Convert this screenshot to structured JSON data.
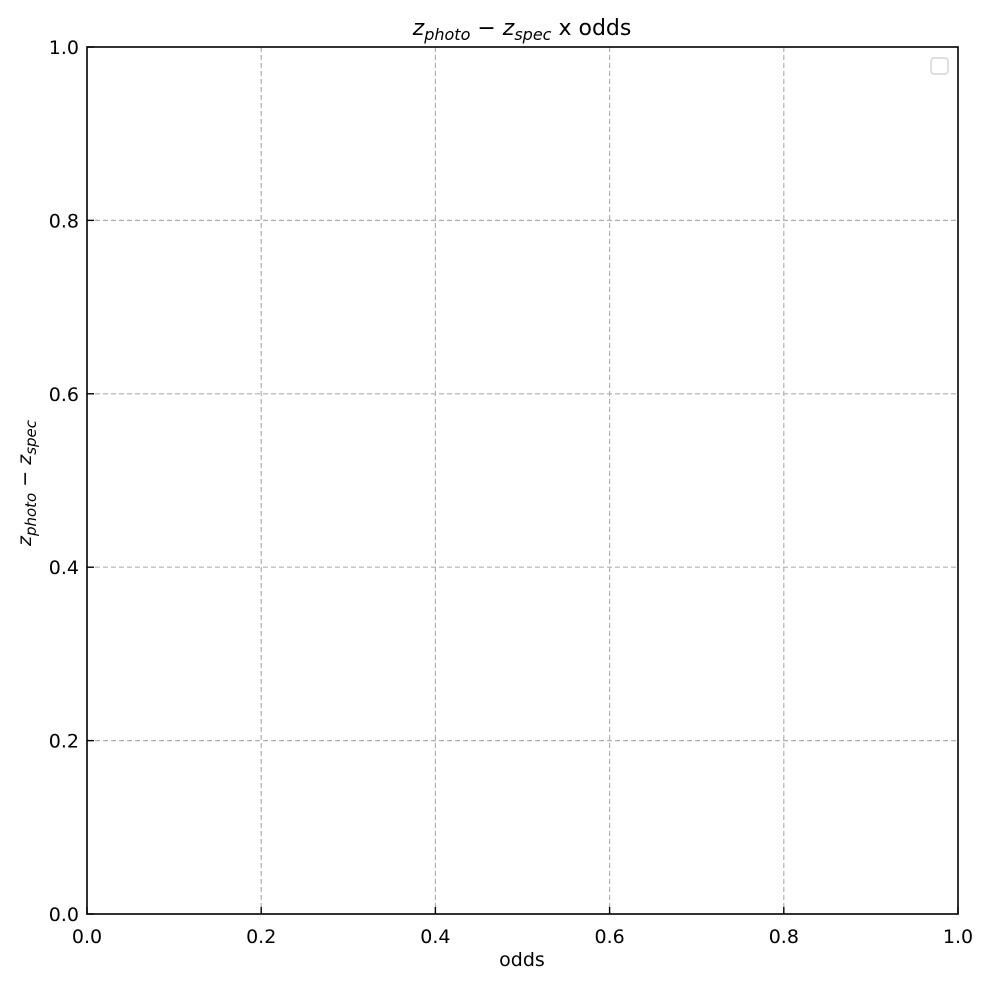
{
  "chart_data": {
    "type": "scatter",
    "title_parts": {
      "z1": "z",
      "sub1": "photo",
      "minus": " − ",
      "z2": "z",
      "sub2": "spec",
      "suffix": " x odds"
    },
    "xlabel": "odds",
    "ylabel_parts": {
      "z1": "z",
      "sub1": "photo",
      "minus": " − ",
      "z2": "z",
      "sub2": "spec"
    },
    "xlim": [
      0.0,
      1.0
    ],
    "ylim": [
      0.0,
      1.0
    ],
    "xticks": [
      0.0,
      0.2,
      0.4,
      0.6,
      0.8,
      1.0
    ],
    "yticks": [
      0.0,
      0.2,
      0.4,
      0.6,
      0.8,
      1.0
    ],
    "xtick_labels": [
      "0.0",
      "0.2",
      "0.4",
      "0.6",
      "0.8",
      "1.0"
    ],
    "ytick_labels": [
      "0.0",
      "0.2",
      "0.4",
      "0.6",
      "0.8",
      "1.0"
    ],
    "grid": true,
    "grid_style": "dashed",
    "legend": "top-right",
    "legend_entries": [],
    "series": [],
    "colors": {
      "grid": "#b0b0b0",
      "frame": "#000000",
      "legend_border": "#cccccc"
    }
  }
}
